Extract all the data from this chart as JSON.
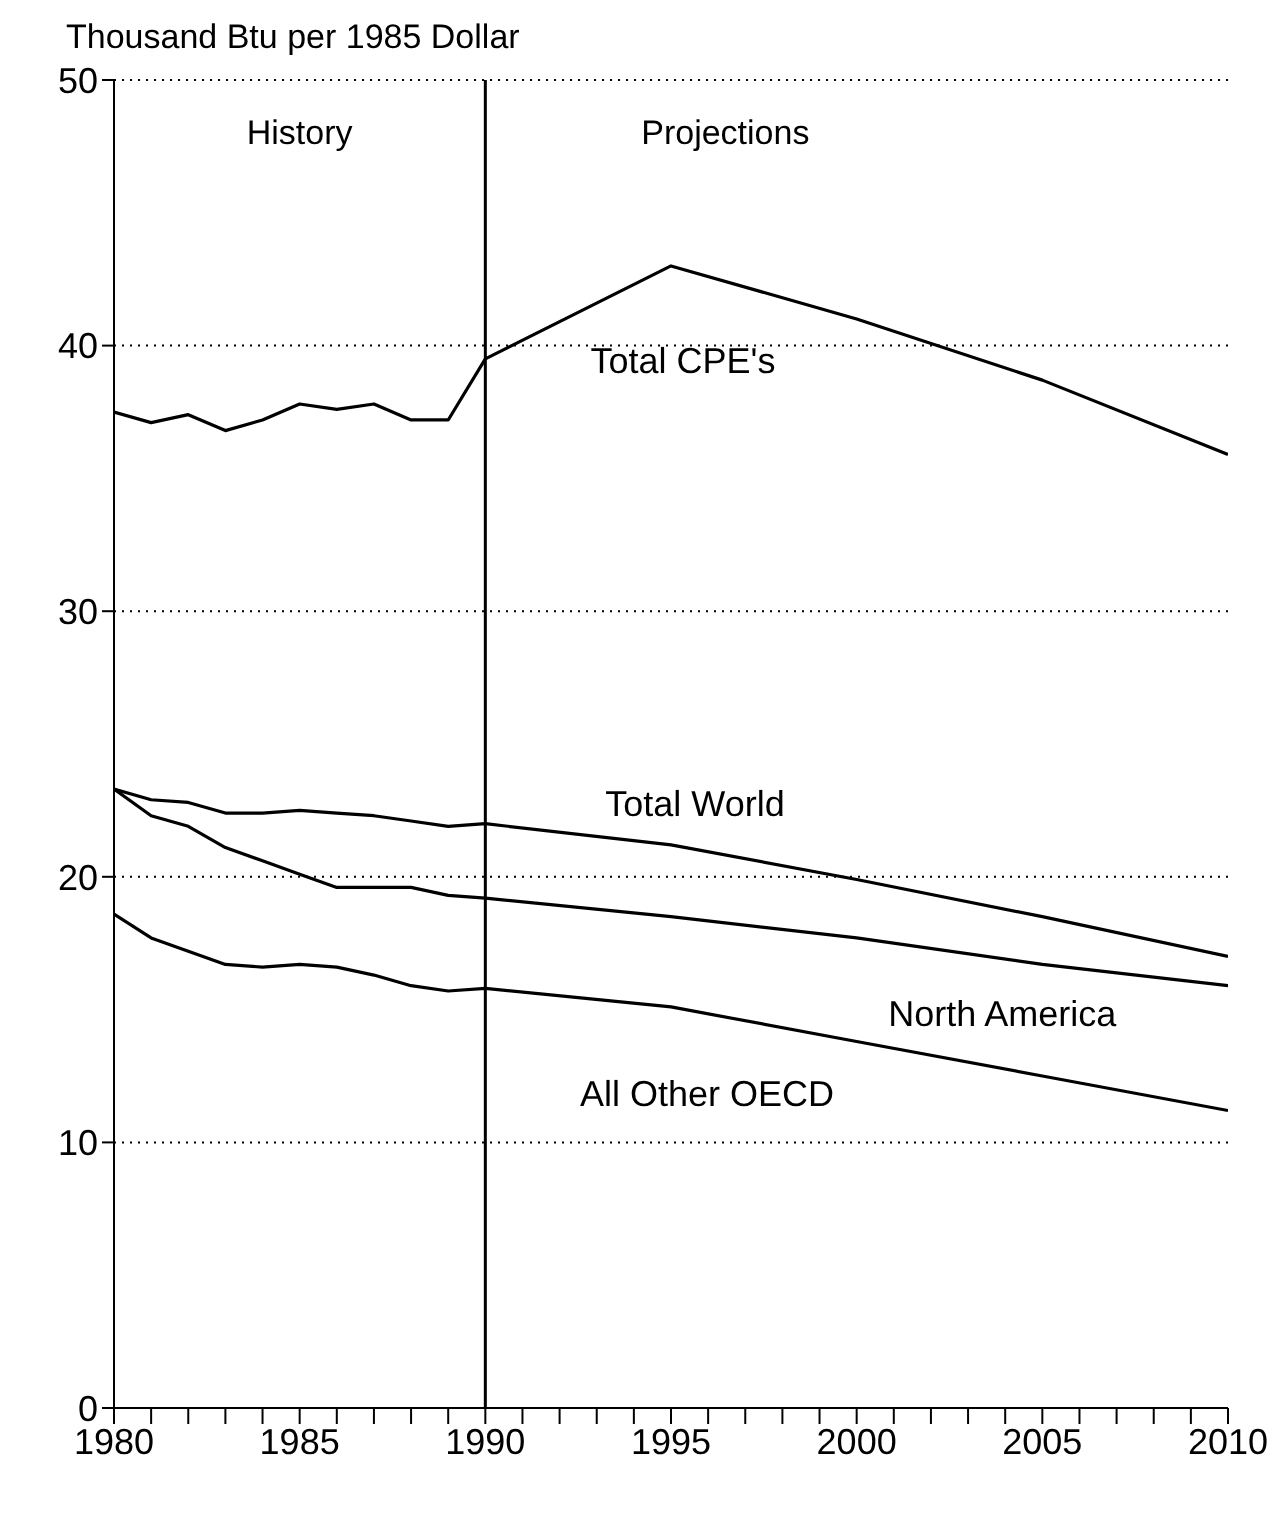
{
  "chart_data": {
    "type": "line",
    "ylabel": "Thousand Btu per 1985 Dollar",
    "x": [
      1980,
      1981,
      1982,
      1983,
      1984,
      1985,
      1986,
      1987,
      1988,
      1989,
      1990,
      1995,
      2000,
      2005,
      2010
    ],
    "series": [
      {
        "name": "Total CPE's",
        "color": "#000000",
        "values": [
          37.5,
          37.1,
          37.4,
          36.8,
          37.2,
          37.8,
          37.6,
          37.8,
          37.2,
          37.2,
          39.5,
          43.0,
          41.0,
          38.7,
          35.9
        ]
      },
      {
        "name": "Total World",
        "color": "#000000",
        "values": [
          23.3,
          22.9,
          22.8,
          22.4,
          22.4,
          22.5,
          22.4,
          22.3,
          22.1,
          21.9,
          22.0,
          21.2,
          19.9,
          18.5,
          17.0
        ]
      },
      {
        "name": "North America",
        "color": "#000000",
        "values": [
          23.3,
          22.3,
          21.9,
          21.1,
          20.6,
          20.1,
          19.6,
          19.6,
          19.6,
          19.3,
          19.2,
          18.5,
          17.7,
          16.7,
          15.9
        ]
      },
      {
        "name": "All Other OECD",
        "color": "#000000",
        "values": [
          18.6,
          17.7,
          17.2,
          16.7,
          16.6,
          16.7,
          16.6,
          16.3,
          15.9,
          15.7,
          15.8,
          15.1,
          13.8,
          12.5,
          11.2
        ]
      }
    ],
    "xlim": [
      1980,
      2010
    ],
    "xticks": [
      1980,
      {
        "value": 1981,
        "label": null
      },
      {
        "value": 1982,
        "label": null
      },
      {
        "value": 1983,
        "label": null
      },
      {
        "value": 1984,
        "label": null
      },
      1985,
      {
        "value": 1986,
        "label": null
      },
      {
        "value": 1987,
        "label": null
      },
      {
        "value": 1988,
        "label": null
      },
      {
        "value": 1989,
        "label": null
      },
      1990,
      {
        "value": 1991,
        "label": null
      },
      {
        "value": 1992,
        "label": null
      },
      {
        "value": 1993,
        "label": null
      },
      {
        "value": 1994,
        "label": null
      },
      1995,
      {
        "value": 1996,
        "label": null
      },
      {
        "value": 1997,
        "label": null
      },
      {
        "value": 1998,
        "label": null
      },
      {
        "value": 1999,
        "label": null
      },
      2000,
      {
        "value": 2001,
        "label": null
      },
      {
        "value": 2002,
        "label": null
      },
      {
        "value": 2003,
        "label": null
      },
      {
        "value": 2004,
        "label": null
      },
      2005,
      {
        "value": 2006,
        "label": null
      },
      {
        "value": 2007,
        "label": null
      },
      {
        "value": 2008,
        "label": null
      },
      {
        "value": 2009,
        "label": null
      },
      2010
    ],
    "ylim": [
      0,
      50
    ],
    "yticks": [
      0,
      10,
      20,
      30,
      40,
      50
    ],
    "ref_lines": [
      {
        "axis": "x",
        "value": 1990,
        "color": "#000000",
        "line_style": "solid"
      }
    ],
    "annotations": [
      "History",
      "Projections"
    ],
    "grid": "y",
    "legend": false,
    "marker": "none",
    "line_style": "solid"
  }
}
